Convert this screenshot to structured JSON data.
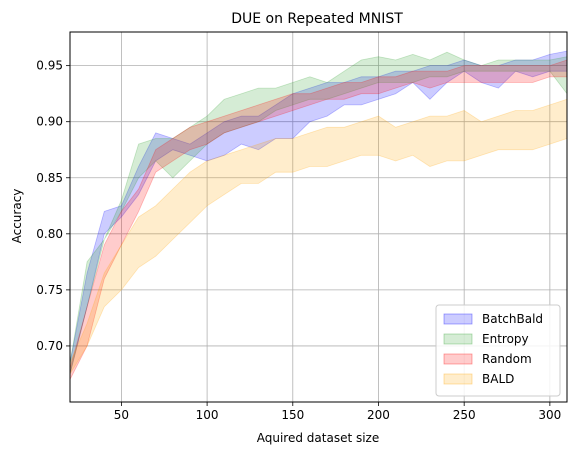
{
  "chart_data": {
    "type": "area",
    "title": "DUE on Repeated MNIST",
    "xlabel": "Aquired dataset size",
    "ylabel": "Accuracy",
    "xlim": [
      20,
      310
    ],
    "ylim": [
      0.65,
      0.98
    ],
    "xticks": [
      50,
      100,
      150,
      200,
      250,
      300
    ],
    "yticks": [
      0.7,
      0.75,
      0.8,
      0.85,
      0.9,
      0.95
    ],
    "xtick_labels": [
      "50",
      "100",
      "150",
      "200",
      "250",
      "300"
    ],
    "ytick_labels": [
      "0.70",
      "0.75",
      "0.80",
      "0.85",
      "0.90",
      "0.95"
    ],
    "grid": true,
    "legend_position": "bottom-right",
    "x": [
      20,
      30,
      40,
      50,
      60,
      70,
      80,
      90,
      100,
      110,
      120,
      130,
      140,
      150,
      160,
      170,
      180,
      190,
      200,
      210,
      220,
      230,
      240,
      250,
      260,
      270,
      280,
      290,
      300,
      310
    ],
    "series": [
      {
        "name": "BatchBald",
        "color": "#0000ff",
        "lower": [
          0.675,
          0.735,
          0.8,
          0.815,
          0.835,
          0.865,
          0.875,
          0.87,
          0.865,
          0.87,
          0.88,
          0.875,
          0.885,
          0.885,
          0.9,
          0.905,
          0.915,
          0.915,
          0.92,
          0.925,
          0.935,
          0.92,
          0.935,
          0.945,
          0.935,
          0.93,
          0.945,
          0.94,
          0.945,
          0.945
        ],
        "upper": [
          0.685,
          0.765,
          0.82,
          0.825,
          0.86,
          0.89,
          0.885,
          0.88,
          0.89,
          0.9,
          0.905,
          0.905,
          0.915,
          0.925,
          0.93,
          0.935,
          0.935,
          0.94,
          0.94,
          0.945,
          0.945,
          0.95,
          0.95,
          0.955,
          0.95,
          0.95,
          0.955,
          0.955,
          0.96,
          0.963
        ]
      },
      {
        "name": "Entropy",
        "color": "#2ca02c",
        "lower": [
          0.675,
          0.735,
          0.795,
          0.82,
          0.85,
          0.865,
          0.85,
          0.865,
          0.88,
          0.89,
          0.895,
          0.9,
          0.91,
          0.915,
          0.92,
          0.92,
          0.925,
          0.93,
          0.935,
          0.935,
          0.935,
          0.94,
          0.94,
          0.945,
          0.945,
          0.945,
          0.945,
          0.945,
          0.945,
          0.925
        ],
        "upper": [
          0.685,
          0.775,
          0.795,
          0.83,
          0.88,
          0.885,
          0.885,
          0.895,
          0.905,
          0.92,
          0.925,
          0.93,
          0.93,
          0.935,
          0.94,
          0.935,
          0.945,
          0.955,
          0.958,
          0.955,
          0.96,
          0.955,
          0.962,
          0.955,
          0.95,
          0.955,
          0.955,
          0.955,
          0.955,
          0.958
        ]
      },
      {
        "name": "Random",
        "color": "#ff0000",
        "lower": [
          0.67,
          0.7,
          0.76,
          0.79,
          0.82,
          0.855,
          0.865,
          0.875,
          0.88,
          0.89,
          0.895,
          0.9,
          0.905,
          0.91,
          0.915,
          0.92,
          0.92,
          0.925,
          0.925,
          0.93,
          0.935,
          0.93,
          0.935,
          0.935,
          0.935,
          0.935,
          0.935,
          0.935,
          0.94,
          0.94
        ],
        "upper": [
          0.68,
          0.735,
          0.79,
          0.82,
          0.84,
          0.875,
          0.885,
          0.895,
          0.9,
          0.905,
          0.91,
          0.915,
          0.92,
          0.925,
          0.925,
          0.93,
          0.935,
          0.935,
          0.94,
          0.94,
          0.945,
          0.945,
          0.945,
          0.95,
          0.95,
          0.95,
          0.95,
          0.95,
          0.95,
          0.955
        ]
      },
      {
        "name": "BALD",
        "color": "#ffa500",
        "lower": [
          0.675,
          0.7,
          0.735,
          0.75,
          0.77,
          0.78,
          0.795,
          0.81,
          0.825,
          0.835,
          0.845,
          0.845,
          0.855,
          0.855,
          0.86,
          0.86,
          0.865,
          0.87,
          0.87,
          0.865,
          0.87,
          0.86,
          0.865,
          0.865,
          0.87,
          0.875,
          0.875,
          0.875,
          0.88,
          0.885
        ],
        "upper": [
          0.685,
          0.72,
          0.765,
          0.79,
          0.815,
          0.825,
          0.84,
          0.855,
          0.865,
          0.87,
          0.875,
          0.88,
          0.885,
          0.885,
          0.89,
          0.895,
          0.895,
          0.9,
          0.905,
          0.895,
          0.9,
          0.905,
          0.905,
          0.91,
          0.9,
          0.905,
          0.91,
          0.91,
          0.915,
          0.92
        ]
      }
    ]
  }
}
